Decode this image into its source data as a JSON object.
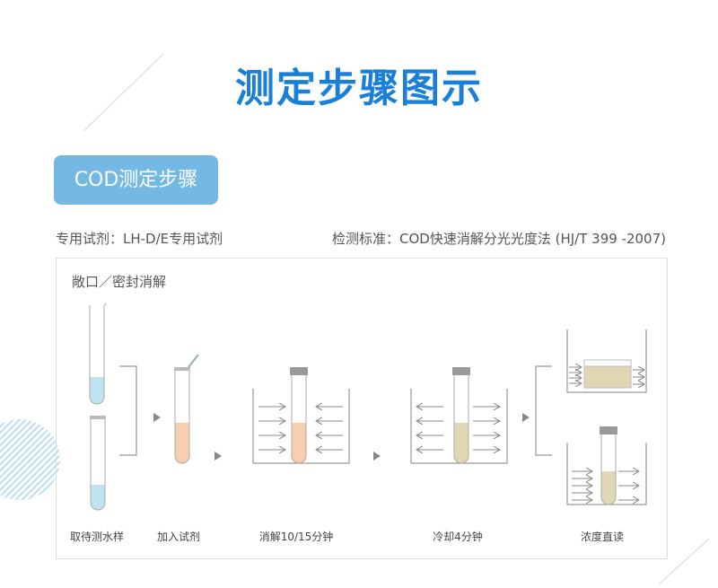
{
  "title": "测定步骤图示",
  "badge": "COD测定步骤",
  "reagent": "专用试剂：LH-D/E专用试剂",
  "standard": "检测标准：COD快速消解分光光度法 (HJ/T 399 -2007)",
  "section_label": "敞口／密封消解",
  "steps": [
    "取待测水样",
    "加入试剂",
    "消解10/15分钟",
    "冷却4分钟",
    "浓度直读"
  ],
  "colors": {
    "title": "#1a7fd8",
    "badge": "#74b8e4",
    "sample": "#bfe3ef",
    "reagent": "#f9cdb0",
    "digested": "#e2d7b5"
  }
}
